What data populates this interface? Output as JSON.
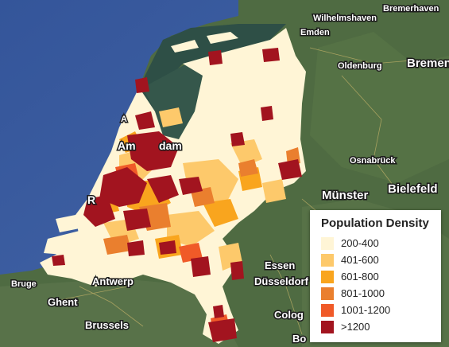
{
  "legend": {
    "title": "Population Density",
    "items": [
      {
        "label": "200-400",
        "color": "#fff5d6"
      },
      {
        "label": "401-600",
        "color": "#fdc96b"
      },
      {
        "label": "601-800",
        "color": "#f9a51e"
      },
      {
        "label": "801-1000",
        "color": "#ea7f2e"
      },
      {
        "label": "1001-1200",
        "color": "#f05a28"
      },
      {
        "label": ">1200",
        "color": "#a2141f"
      }
    ]
  },
  "cities": {
    "wilhelmshaven": "Wilhelmshaven",
    "bremerhaven": "Bremerhaven",
    "emden": "Emden",
    "oldenburg": "Oldenburg",
    "bremen": "Bremen",
    "osnabruck": "Osnabrück",
    "munster": "Münster",
    "bielefeld": "Bielefeld",
    "essen": "Essen",
    "dusseldorf": "Düsseldorf",
    "cologne_partial": "Colog",
    "bonn_partial": "Bo",
    "amsterdam_partial": "Am",
    "amsterdam_tail": "dam",
    "alkmaar_partial": "A",
    "rotterdam_partial": "R",
    "bruges_partial": "Bruge",
    "antwerp": "Antwerp",
    "ghent": "Ghent",
    "brussels": "Brussels"
  },
  "colors": {
    "sea": "#3c5ea0",
    "land": "#4d6a40",
    "wadden": "#2f5045"
  }
}
